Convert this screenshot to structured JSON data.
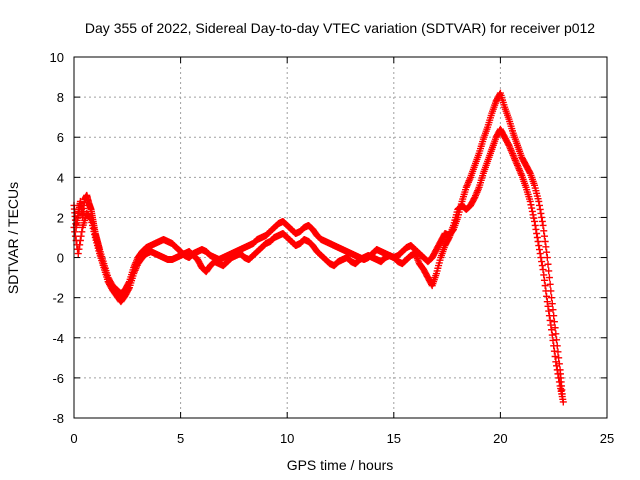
{
  "chart_data": {
    "type": "scatter",
    "title": "Day 355 of 2022, Sidereal Day-to-day VTEC variation (SDTVAR) for receiver p012",
    "xlabel": "GPS time / hours",
    "ylabel": "SDTVAR / TECUs",
    "xlim": [
      0,
      25
    ],
    "ylim": [
      -8,
      10
    ],
    "xticks": [
      0,
      5,
      10,
      15,
      20,
      25
    ],
    "yticks": [
      -8,
      -6,
      -4,
      -2,
      0,
      2,
      4,
      6,
      8,
      10
    ],
    "grid": true,
    "marker": "+",
    "series": [
      {
        "name": "SDTVAR",
        "color": "#ff0000",
        "x": [
          0.0,
          0.1,
          0.2,
          0.3,
          0.4,
          0.5,
          0.6,
          0.7,
          0.8,
          0.9,
          1.0,
          1.1,
          1.2,
          1.4,
          1.6,
          1.8,
          2.0,
          2.2,
          2.4,
          2.6,
          2.8,
          3.0,
          3.2,
          3.4,
          3.6,
          3.8,
          4.0,
          4.2,
          4.4,
          4.6,
          4.8,
          5.0,
          5.2,
          5.4,
          5.6,
          5.8,
          6.0,
          6.2,
          6.4,
          6.6,
          6.8,
          7.0,
          7.2,
          7.4,
          7.6,
          7.8,
          8.0,
          8.2,
          8.4,
          8.6,
          8.8,
          9.0,
          9.2,
          9.4,
          9.6,
          9.8,
          10.0,
          10.2,
          10.4,
          10.6,
          10.8,
          11.0,
          11.2,
          11.4,
          11.6,
          11.8,
          12.0,
          12.2,
          12.4,
          12.6,
          12.8,
          13.0,
          13.2,
          13.4,
          13.6,
          13.8,
          14.0,
          14.2,
          14.4,
          14.6,
          14.8,
          15.0,
          15.2,
          15.4,
          15.6,
          15.8,
          16.0,
          16.2,
          16.4,
          16.6,
          16.8,
          17.0,
          17.2,
          17.4,
          17.6,
          17.8,
          18.0,
          18.2,
          18.4,
          18.6,
          18.8,
          19.0,
          19.2,
          19.4,
          19.6,
          19.8,
          20.0,
          20.2,
          20.4,
          20.6,
          20.8,
          21.0,
          21.2,
          21.4,
          21.6,
          21.8,
          22.0,
          22.2,
          22.4,
          22.6,
          22.8,
          22.9
        ],
        "y": [
          2.6,
          1.5,
          2.2,
          2.8,
          2.0,
          2.9,
          3.1,
          2.7,
          2.4,
          1.8,
          1.2,
          0.8,
          0.4,
          -0.3,
          -1.0,
          -1.4,
          -1.6,
          -1.8,
          -1.6,
          -1.2,
          -0.5,
          0.0,
          0.3,
          0.5,
          0.6,
          0.7,
          0.8,
          0.9,
          0.8,
          0.7,
          0.5,
          0.3,
          0.1,
          0.0,
          0.2,
          0.3,
          0.4,
          0.3,
          0.1,
          0.0,
          -0.1,
          0.0,
          0.1,
          0.2,
          0.3,
          0.4,
          0.5,
          0.6,
          0.7,
          0.9,
          1.0,
          1.1,
          1.3,
          1.5,
          1.7,
          1.8,
          1.6,
          1.4,
          1.2,
          1.3,
          1.5,
          1.6,
          1.4,
          1.1,
          0.9,
          0.8,
          0.7,
          0.6,
          0.5,
          0.4,
          0.3,
          0.2,
          0.1,
          0.0,
          -0.1,
          0.0,
          0.2,
          0.4,
          0.3,
          0.2,
          0.1,
          0.0,
          0.1,
          0.3,
          0.5,
          0.6,
          0.4,
          0.2,
          0.0,
          -0.2,
          0.0,
          0.4,
          0.8,
          1.2,
          1.1,
          1.4,
          2.0,
          2.8,
          3.5,
          4.0,
          4.6,
          5.2,
          5.9,
          6.5,
          7.2,
          7.8,
          8.2,
          7.5,
          6.9,
          6.2,
          5.6,
          5.0,
          4.6,
          4.2,
          3.6,
          2.8,
          1.6,
          0.0,
          -2.0,
          -3.8,
          -5.6,
          -6.8
        ],
        "x_low": [
          0.0,
          0.2,
          0.4,
          0.6,
          0.8,
          1.0,
          1.2,
          1.4,
          1.6,
          1.8,
          2.0,
          2.2,
          2.4,
          2.6,
          2.8,
          3.0,
          3.2,
          3.4,
          3.6,
          3.8,
          4.0,
          4.2,
          4.4,
          4.6,
          4.8,
          5.0,
          5.2,
          5.4,
          5.6,
          5.8,
          6.0,
          6.2,
          6.4,
          6.6,
          6.8,
          7.0,
          7.2,
          7.4,
          7.6,
          7.8,
          8.0,
          8.2,
          8.4,
          8.6,
          8.8,
          9.0,
          9.2,
          9.4,
          9.6,
          9.8,
          10.0,
          10.2,
          10.4,
          10.6,
          10.8,
          11.0,
          11.2,
          11.4,
          11.6,
          11.8,
          12.0,
          12.2,
          12.4,
          12.6,
          12.8,
          13.0,
          13.2,
          13.4,
          13.6,
          13.8,
          14.0,
          14.2,
          14.4,
          14.6,
          14.8,
          15.0,
          15.2,
          15.4,
          15.6,
          15.8,
          16.0,
          16.2,
          16.4,
          16.6,
          16.8,
          17.0,
          17.2,
          17.4,
          17.6,
          17.8,
          18.0,
          18.2,
          18.4,
          18.6,
          18.8,
          19.0,
          19.2,
          19.4,
          19.6,
          19.8,
          20.0,
          20.2,
          20.4,
          20.6,
          20.8,
          21.0,
          21.2,
          21.4,
          21.6,
          21.8,
          22.0,
          22.2,
          22.4,
          22.6,
          22.8,
          22.95
        ],
        "y_low": [
          1.5,
          0.2,
          1.5,
          2.2,
          1.9,
          1.0,
          0.2,
          -0.5,
          -1.2,
          -1.6,
          -1.9,
          -2.2,
          -1.9,
          -1.5,
          -0.8,
          -0.3,
          0.0,
          0.2,
          0.3,
          0.2,
          0.1,
          0.0,
          -0.1,
          -0.1,
          0.0,
          0.1,
          0.2,
          0.3,
          0.1,
          -0.1,
          -0.5,
          -0.7,
          -0.4,
          -0.2,
          -0.3,
          -0.4,
          -0.2,
          0.0,
          0.1,
          0.2,
          0.0,
          -0.1,
          0.1,
          0.3,
          0.5,
          0.7,
          0.8,
          1.0,
          1.1,
          1.2,
          1.0,
          0.8,
          0.6,
          0.7,
          0.9,
          0.8,
          0.6,
          0.3,
          0.1,
          -0.1,
          -0.3,
          -0.4,
          -0.2,
          -0.1,
          0.0,
          -0.2,
          -0.3,
          -0.1,
          0.0,
          0.1,
          0.0,
          -0.1,
          -0.2,
          0.0,
          0.1,
          0.0,
          -0.2,
          -0.3,
          -0.1,
          0.1,
          0.2,
          -0.3,
          -0.6,
          -1.0,
          -1.4,
          -0.8,
          0.0,
          0.6,
          1.0,
          1.6,
          2.4,
          2.6,
          2.4,
          2.6,
          3.0,
          3.5,
          4.2,
          4.8,
          5.4,
          6.0,
          6.4,
          6.0,
          5.6,
          5.1,
          4.6,
          4.1,
          3.5,
          2.8,
          1.8,
          0.6,
          -0.6,
          -2.2,
          -3.6,
          -5.2,
          -6.4,
          -7.2
        ]
      }
    ]
  }
}
